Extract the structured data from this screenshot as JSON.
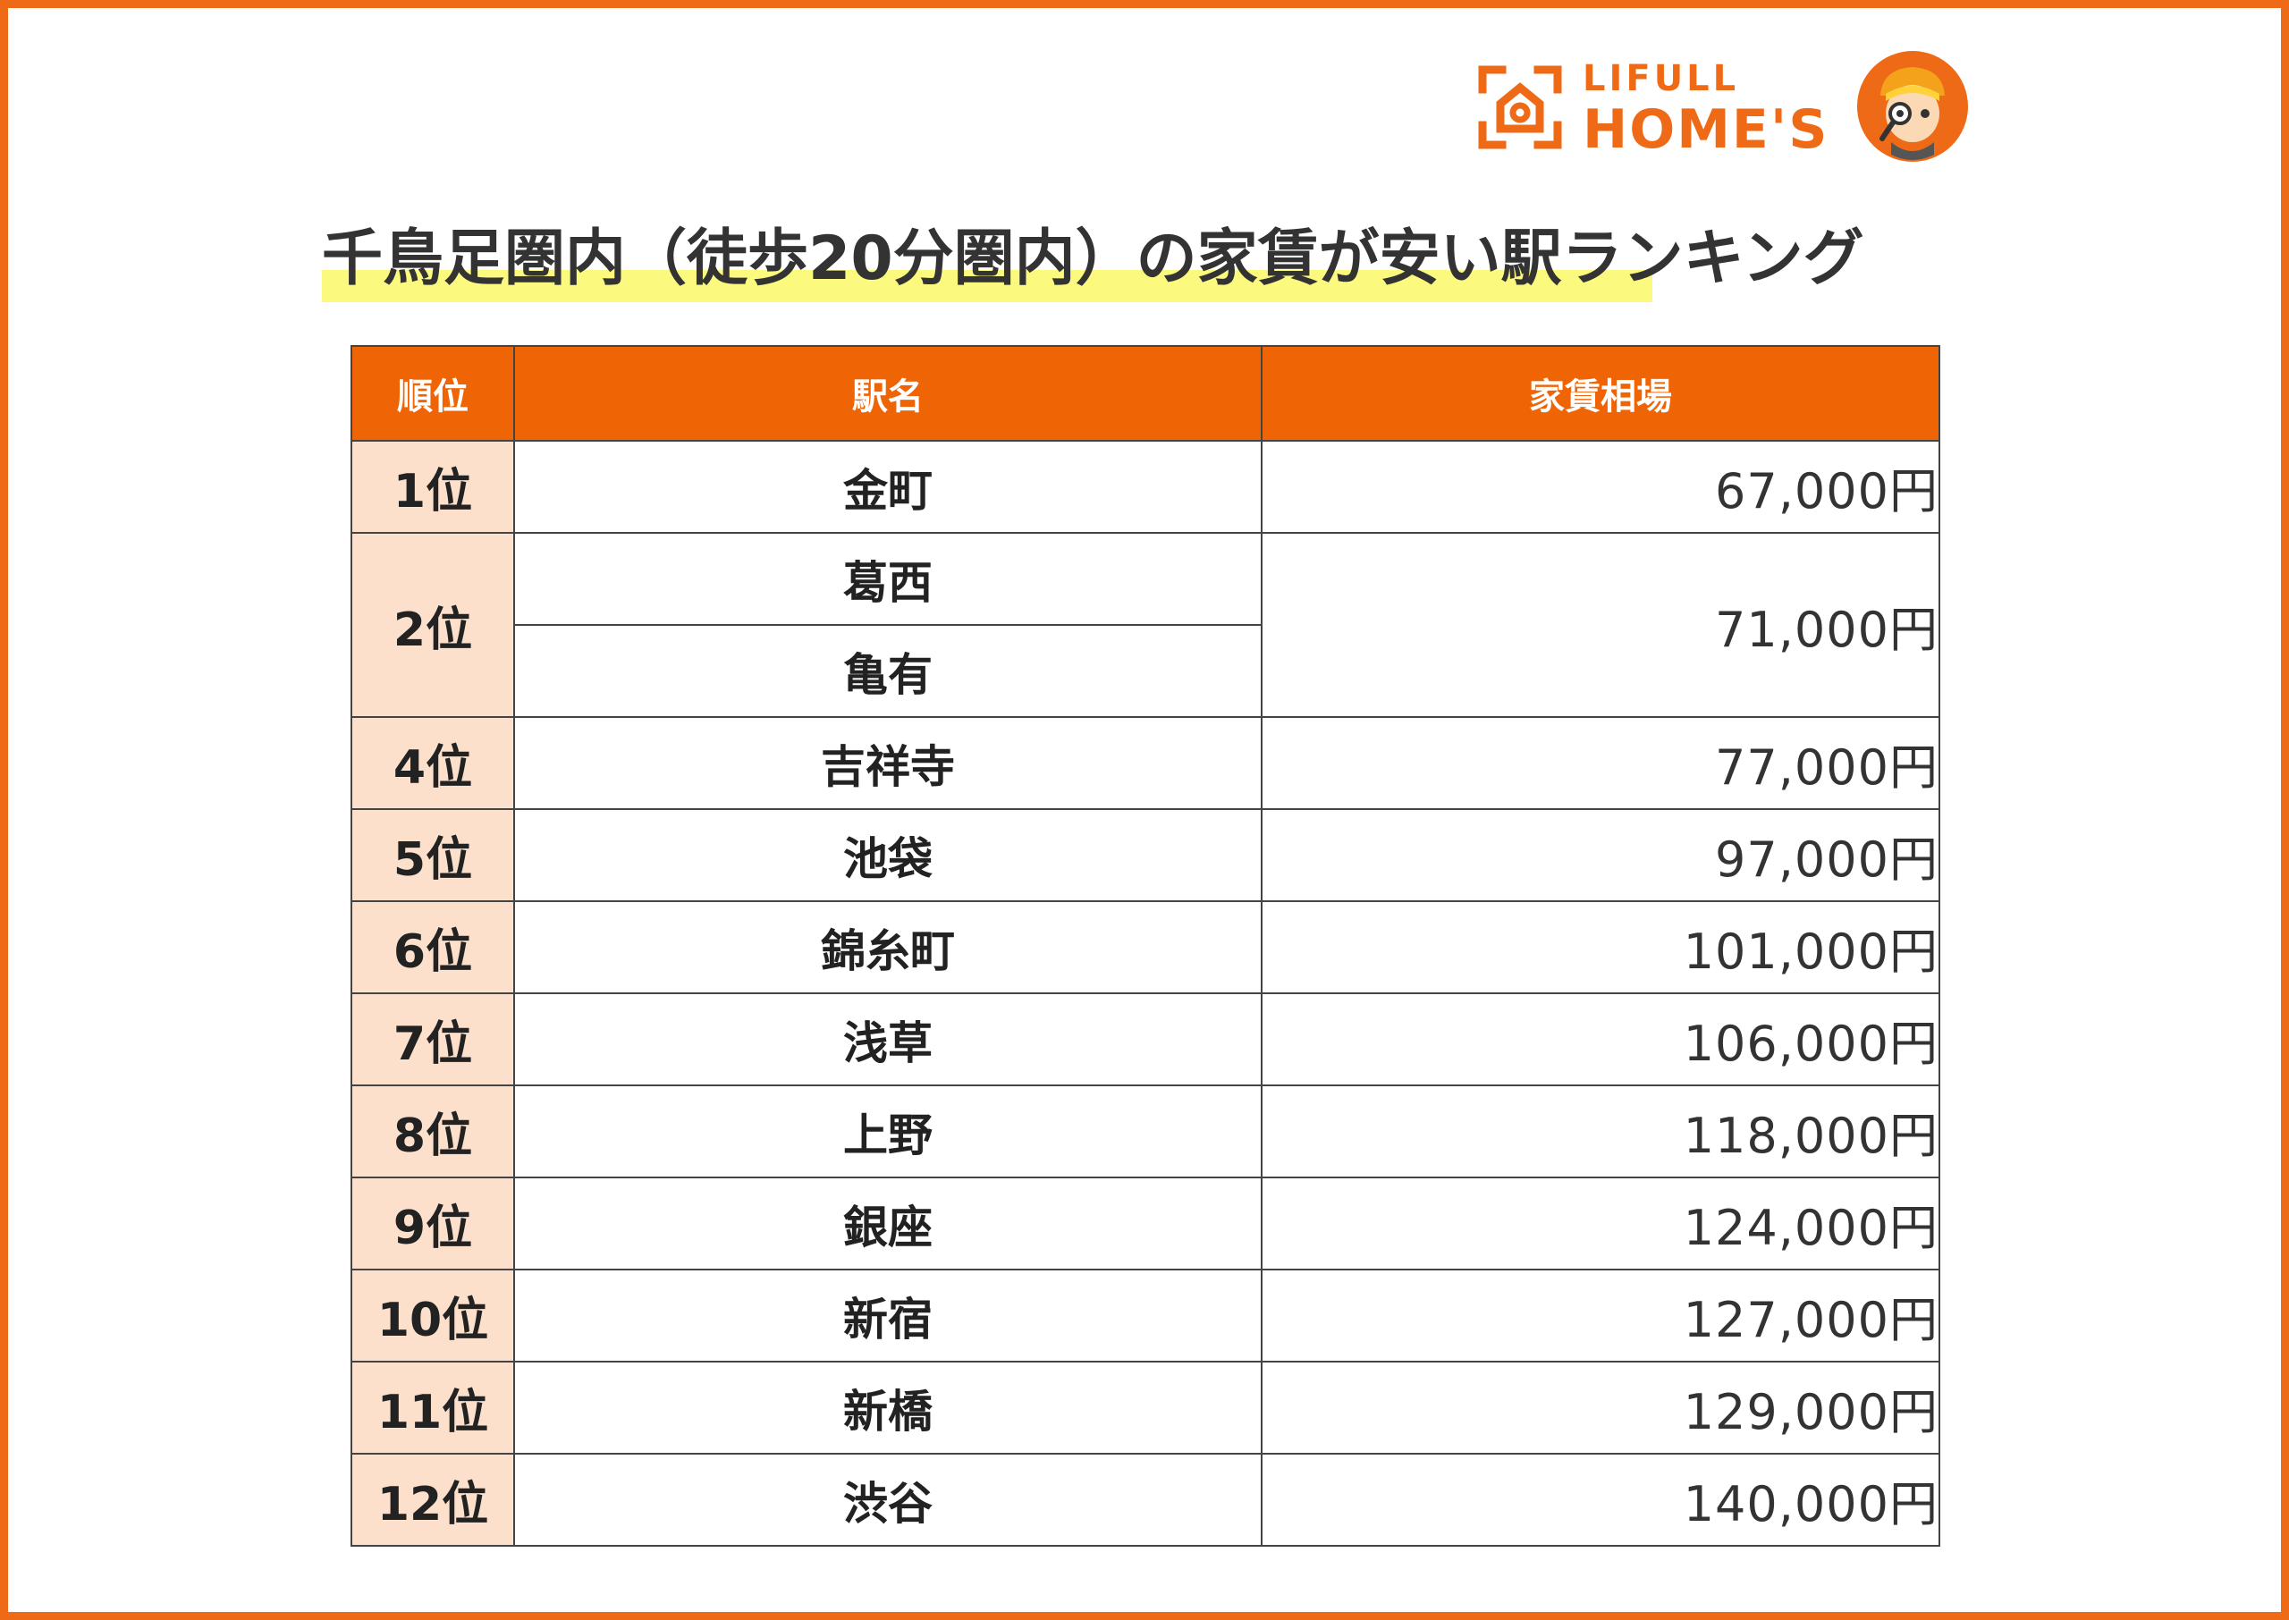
{
  "brand": {
    "line1": "LIFULL",
    "line2": "HOME'S",
    "accent_color": "#ef6a16",
    "mascot_icon": "detective-mascot-icon"
  },
  "title": "千鳥足圏内（徒歩20分圏内）の家賃が安い駅ランキング",
  "chart_data": {
    "type": "table",
    "columns": [
      "順位",
      "駅名",
      "家賃相場"
    ],
    "rows": [
      {
        "rank": "1位",
        "station": "金町",
        "rent": "67,000円"
      },
      {
        "rank": "2位",
        "station": "葛西",
        "rent": "71,000円"
      },
      {
        "rank": "2位",
        "station": "亀有",
        "rent": "71,000円"
      },
      {
        "rank": "4位",
        "station": "吉祥寺",
        "rent": "77,000円"
      },
      {
        "rank": "5位",
        "station": "池袋",
        "rent": "97,000円"
      },
      {
        "rank": "6位",
        "station": "錦糸町",
        "rent": "101,000円"
      },
      {
        "rank": "7位",
        "station": "浅草",
        "rent": "106,000円"
      },
      {
        "rank": "8位",
        "station": "上野",
        "rent": "118,000円"
      },
      {
        "rank": "9位",
        "station": "銀座",
        "rent": "124,000円"
      },
      {
        "rank": "10位",
        "station": "新宿",
        "rent": "127,000円"
      },
      {
        "rank": "11位",
        "station": "新橋",
        "rent": "129,000円"
      },
      {
        "rank": "12位",
        "station": "渋谷",
        "rent": "140,000円"
      }
    ],
    "header_color": "#ef6405",
    "rank_cell_color": "#fde0cc"
  }
}
